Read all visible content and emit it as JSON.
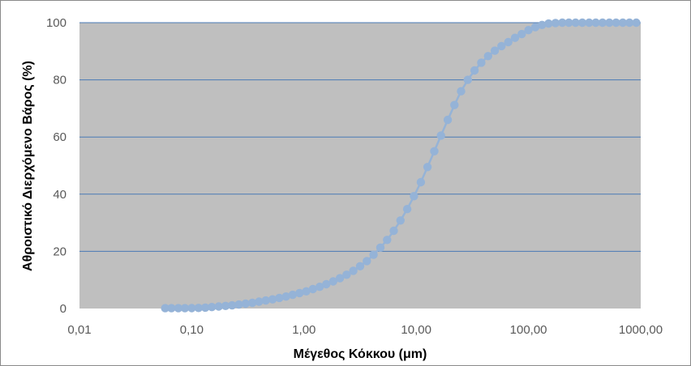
{
  "chart_data": {
    "type": "scatter",
    "x_scale": "log",
    "xlabel": "Μέγεθος Κόκκου (μm)",
    "ylabel": "Αθροιστικό Διερχόμενο Βάρος (%)",
    "xlim": [
      0.01,
      1000
    ],
    "ylim": [
      0,
      100
    ],
    "x_ticks": [
      0.01,
      0.1,
      1,
      10,
      100,
      1000
    ],
    "x_tick_labels": [
      "0,01",
      "0,10",
      "1,00",
      "10,00",
      "100,00",
      "1000,00"
    ],
    "y_ticks": [
      0,
      20,
      40,
      60,
      80,
      100
    ],
    "y_tick_labels": [
      "0",
      "20",
      "40",
      "60",
      "80",
      "100"
    ],
    "grid": "horizontal",
    "plot_background": "#bfbfbf",
    "series_color": "#95b3d7",
    "gridline_color": "#4a7ab5",
    "series": [
      {
        "x": [
          0.058,
          0.066,
          0.076,
          0.087,
          0.1,
          0.115,
          0.132,
          0.151,
          0.174,
          0.2,
          0.229,
          0.263,
          0.302,
          0.347,
          0.398,
          0.457,
          0.525,
          0.603,
          0.692,
          0.794,
          0.912,
          1.047,
          1.2,
          1.38,
          1.58,
          1.82,
          2.09,
          2.4,
          2.75,
          3.16,
          3.63,
          4.17,
          4.79,
          5.5,
          6.31,
          7.24,
          8.32,
          9.55,
          11.0,
          12.6,
          14.5,
          16.6,
          19.1,
          21.9,
          25.1,
          28.8,
          33.1,
          38.0,
          43.7,
          50.1,
          57.5,
          66.1,
          75.9,
          87.1,
          100,
          115,
          132,
          151,
          174,
          200,
          229,
          263,
          302,
          347,
          398,
          457,
          525,
          603,
          692,
          794,
          912
        ],
        "y": [
          0.1,
          0.1,
          0.1,
          0.1,
          0.15,
          0.2,
          0.3,
          0.5,
          0.7,
          0.9,
          1.1,
          1.4,
          1.7,
          2.0,
          2.4,
          2.8,
          3.2,
          3.7,
          4.2,
          4.8,
          5.4,
          6.0,
          6.8,
          7.6,
          8.5,
          9.5,
          10.6,
          11.8,
          13.2,
          14.8,
          16.6,
          18.8,
          21.3,
          24.0,
          27.2,
          30.8,
          34.8,
          39.3,
          44.2,
          49.5,
          55.0,
          60.5,
          66.0,
          71.2,
          76.0,
          80.0,
          83.3,
          86.0,
          88.3,
          90.2,
          91.8,
          93.2,
          94.7,
          96.0,
          97.4,
          98.4,
          99.2,
          99.7,
          99.9,
          100,
          100,
          100,
          100,
          100,
          100,
          100,
          100,
          100,
          100,
          100,
          100
        ]
      }
    ]
  }
}
